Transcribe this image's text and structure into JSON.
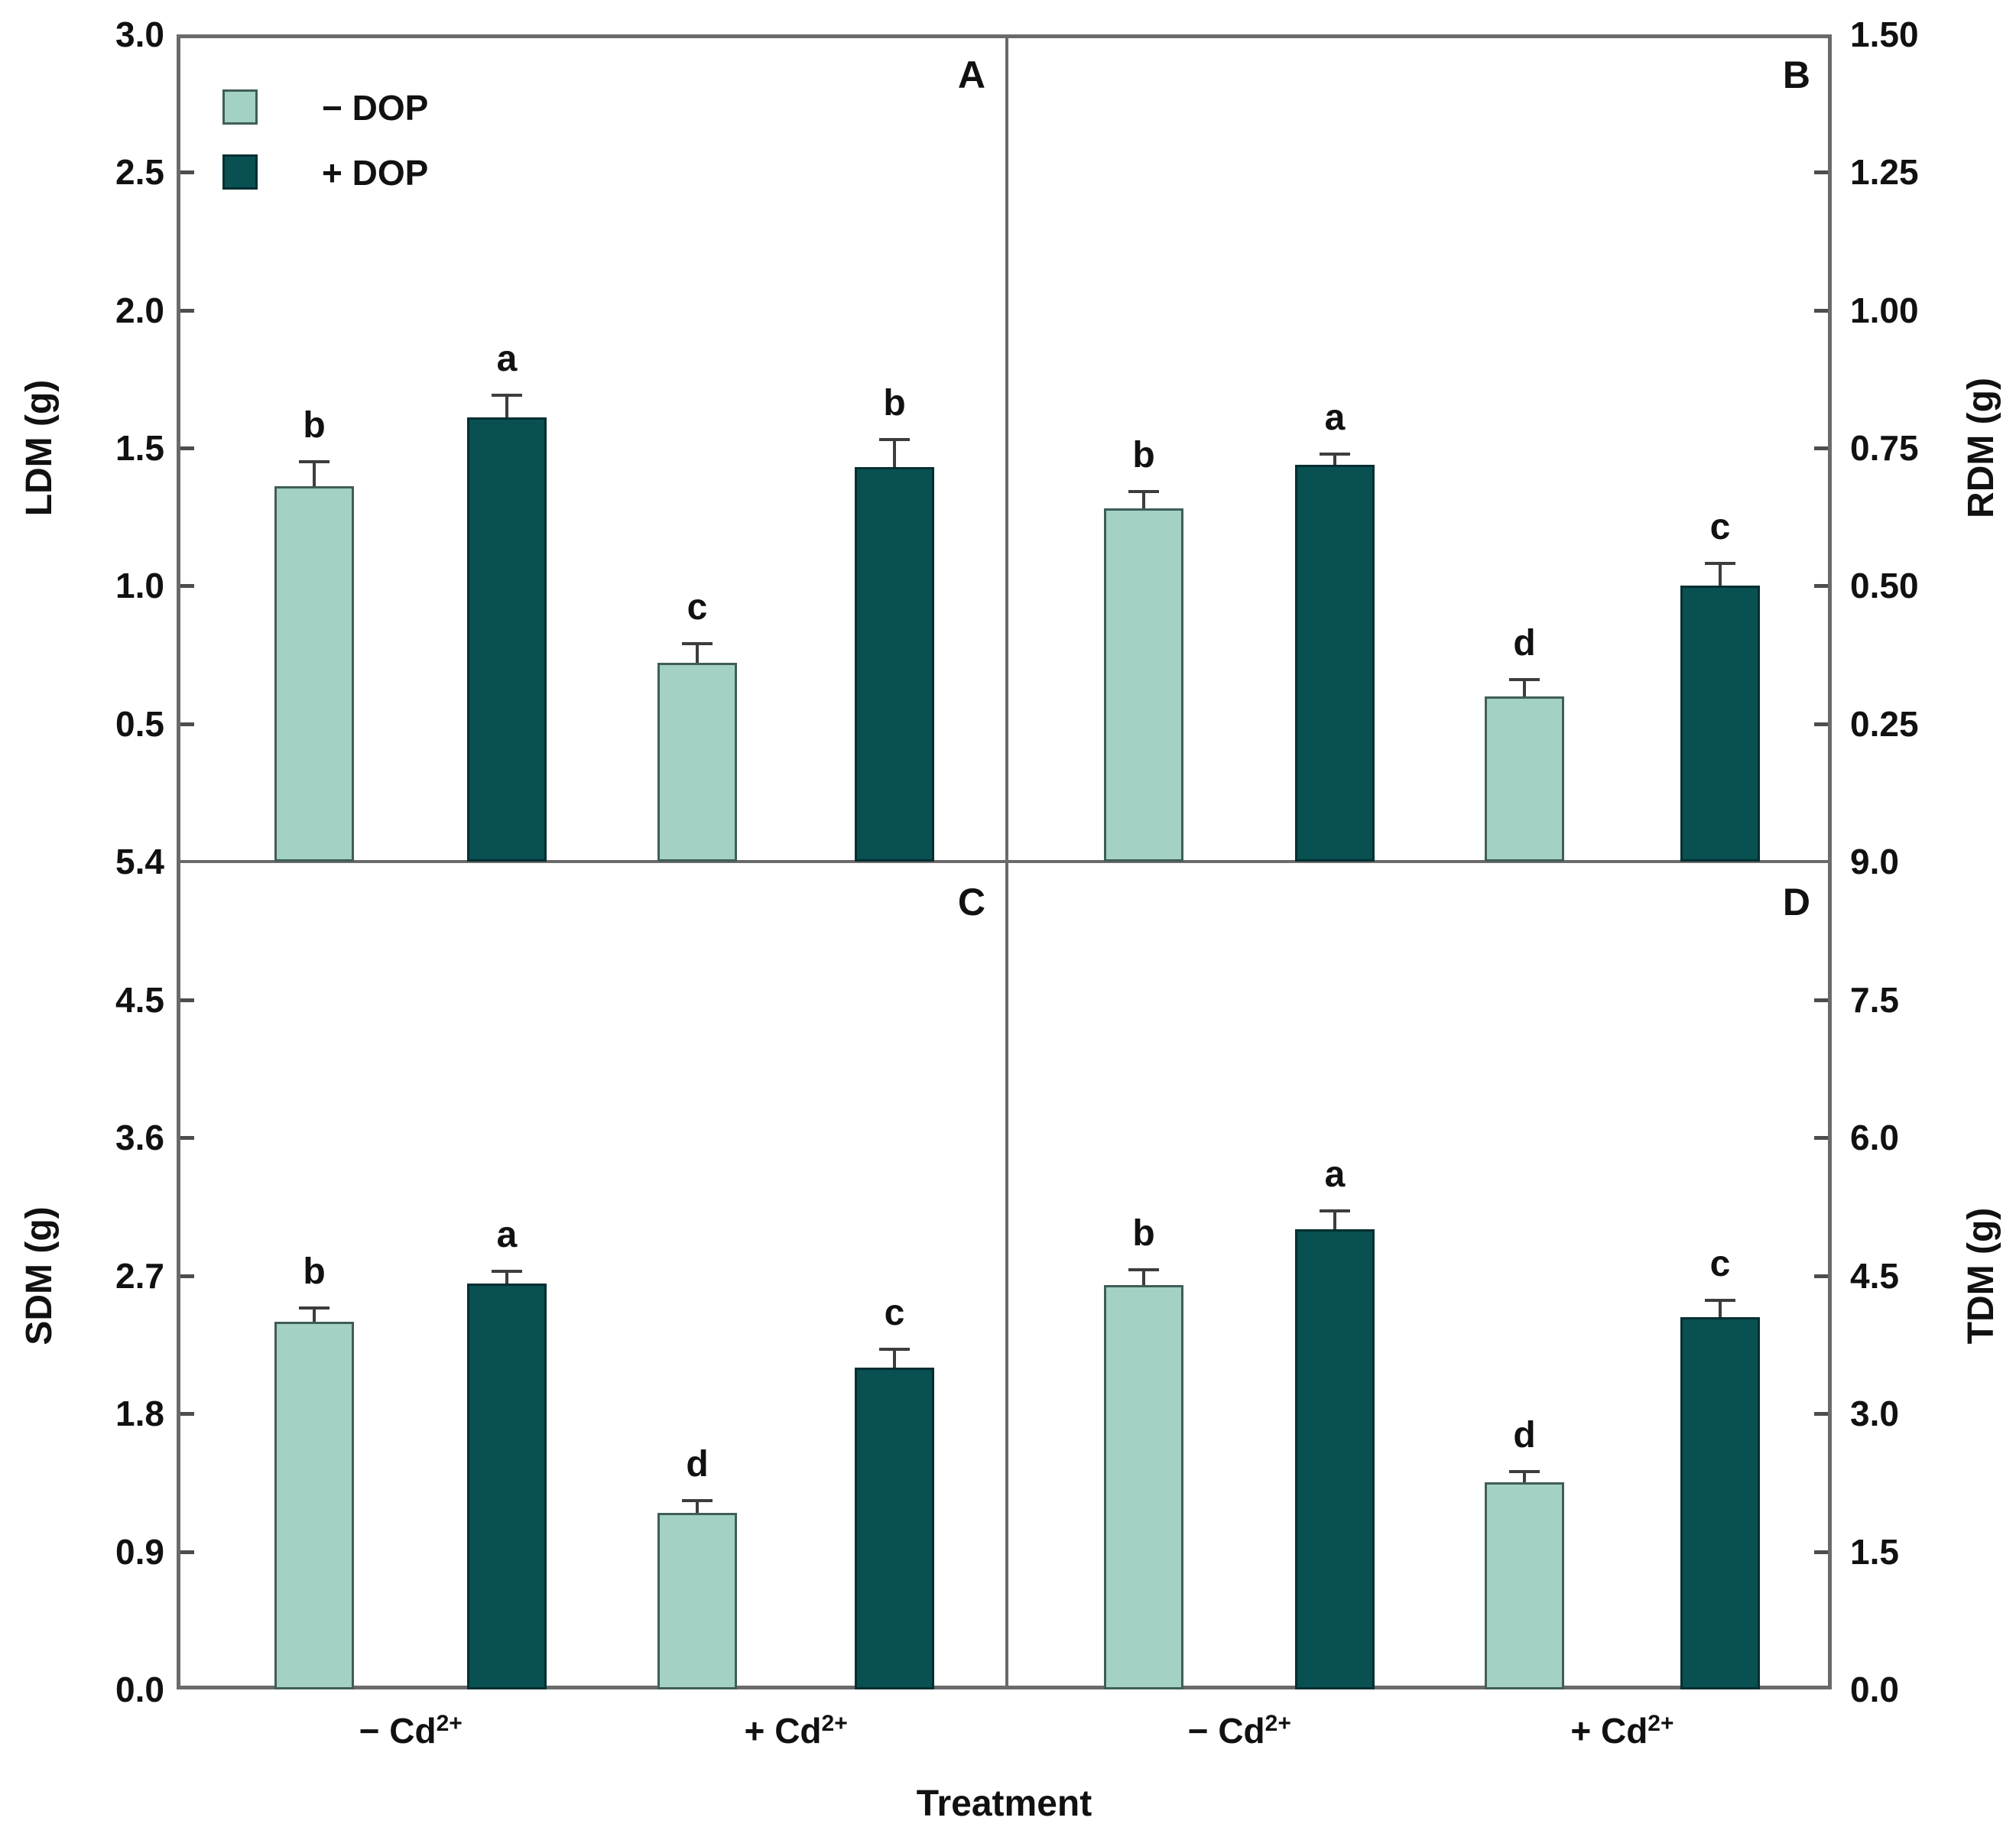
{
  "labels": {
    "x_axis_title": "Treatment"
  },
  "legend": {
    "items": [
      {
        "label": "− DOP",
        "color": "#a3d1c4",
        "stroke": "#3f5e57"
      },
      {
        "label": "+ DOP",
        "color": "#085052",
        "stroke": "#042f31"
      }
    ]
  },
  "colors": {
    "light_fill": "#a3d1c4",
    "light_stroke": "#3f5e57",
    "dark_fill": "#085052",
    "dark_stroke": "#042f31",
    "frame": "#6a6a6a",
    "error_bar": "#3d3d3d",
    "text": "#111111"
  },
  "x_groups": [
    {
      "base": "− Cd",
      "sup": "2+",
      "label": "− Cd2+"
    },
    {
      "base": "+ Cd",
      "sup": "2+",
      "label": "+ Cd2+"
    }
  ],
  "chart_data": [
    {
      "panel": "A",
      "type": "bar",
      "ylabel": "LDM (g)",
      "axis_side": "left",
      "ylim": [
        0,
        3.0
      ],
      "ytick_labels": [
        "3.0",
        "2.5",
        "2.0",
        "1.5",
        "1.0",
        "0.5"
      ],
      "ytick_values": [
        3.0,
        2.5,
        2.0,
        1.5,
        1.0,
        0.5
      ],
      "categories": [
        "− Cd2+",
        "+ Cd2+"
      ],
      "grid": false,
      "bars": [
        {
          "group": "− Cd2+",
          "series": "− DOP",
          "value": 1.36,
          "error": 0.09,
          "letter": "b"
        },
        {
          "group": "− Cd2+",
          "series": "+ DOP",
          "value": 1.61,
          "error": 0.08,
          "letter": "a"
        },
        {
          "group": "+ Cd2+",
          "series": "− DOP",
          "value": 0.72,
          "error": 0.07,
          "letter": "c"
        },
        {
          "group": "+ Cd2+",
          "series": "+ DOP",
          "value": 1.43,
          "error": 0.1,
          "letter": "b"
        }
      ]
    },
    {
      "panel": "B",
      "type": "bar",
      "ylabel": "RDM (g)",
      "axis_side": "right",
      "ylim": [
        0,
        1.5
      ],
      "ytick_labels": [
        "1.50",
        "1.25",
        "1.00",
        "0.75",
        "0.50",
        "0.25"
      ],
      "ytick_values": [
        1.5,
        1.25,
        1.0,
        0.75,
        0.5,
        0.25
      ],
      "categories": [
        "− Cd2+",
        "+ Cd2+"
      ],
      "grid": false,
      "bars": [
        {
          "group": "− Cd2+",
          "series": "− DOP",
          "value": 0.64,
          "error": 0.03,
          "letter": "b"
        },
        {
          "group": "− Cd2+",
          "series": "+ DOP",
          "value": 0.72,
          "error": 0.02,
          "letter": "a"
        },
        {
          "group": "+ Cd2+",
          "series": "− DOP",
          "value": 0.3,
          "error": 0.03,
          "letter": "d"
        },
        {
          "group": "+ Cd2+",
          "series": "+ DOP",
          "value": 0.5,
          "error": 0.04,
          "letter": "c"
        }
      ]
    },
    {
      "panel": "C",
      "type": "bar",
      "ylabel": "SDM (g)",
      "axis_side": "left",
      "ylim": [
        0,
        5.4
      ],
      "ytick_labels": [
        "5.4",
        "4.5",
        "3.6",
        "2.7",
        "1.8",
        "0.9",
        "0.0"
      ],
      "ytick_values": [
        5.4,
        4.5,
        3.6,
        2.7,
        1.8,
        0.9,
        0.0
      ],
      "categories": [
        "− Cd2+",
        "+ Cd2+"
      ],
      "grid": false,
      "bars": [
        {
          "group": "− Cd2+",
          "series": "− DOP",
          "value": 2.4,
          "error": 0.09,
          "letter": "b"
        },
        {
          "group": "− Cd2+",
          "series": "+ DOP",
          "value": 2.65,
          "error": 0.08,
          "letter": "a"
        },
        {
          "group": "+ Cd2+",
          "series": "− DOP",
          "value": 1.15,
          "error": 0.08,
          "letter": "d"
        },
        {
          "group": "+ Cd2+",
          "series": "+ DOP",
          "value": 2.1,
          "error": 0.12,
          "letter": "c"
        }
      ]
    },
    {
      "panel": "D",
      "type": "bar",
      "ylabel": "TDM (g)",
      "axis_side": "right",
      "ylim": [
        0,
        9.0
      ],
      "ytick_labels": [
        "9.0",
        "7.5",
        "6.0",
        "4.5",
        "3.0",
        "1.5",
        "0.0"
      ],
      "ytick_values": [
        9.0,
        7.5,
        6.0,
        4.5,
        3.0,
        1.5,
        0.0
      ],
      "categories": [
        "− Cd2+",
        "+ Cd2+"
      ],
      "grid": false,
      "bars": [
        {
          "group": "− Cd2+",
          "series": "− DOP",
          "value": 4.4,
          "error": 0.17,
          "letter": "b"
        },
        {
          "group": "− Cd2+",
          "series": "+ DOP",
          "value": 5.0,
          "error": 0.2,
          "letter": "a"
        },
        {
          "group": "+ Cd2+",
          "series": "− DOP",
          "value": 2.25,
          "error": 0.12,
          "letter": "d"
        },
        {
          "group": "+ Cd2+",
          "series": "+ DOP",
          "value": 4.05,
          "error": 0.18,
          "letter": "c"
        }
      ]
    }
  ]
}
